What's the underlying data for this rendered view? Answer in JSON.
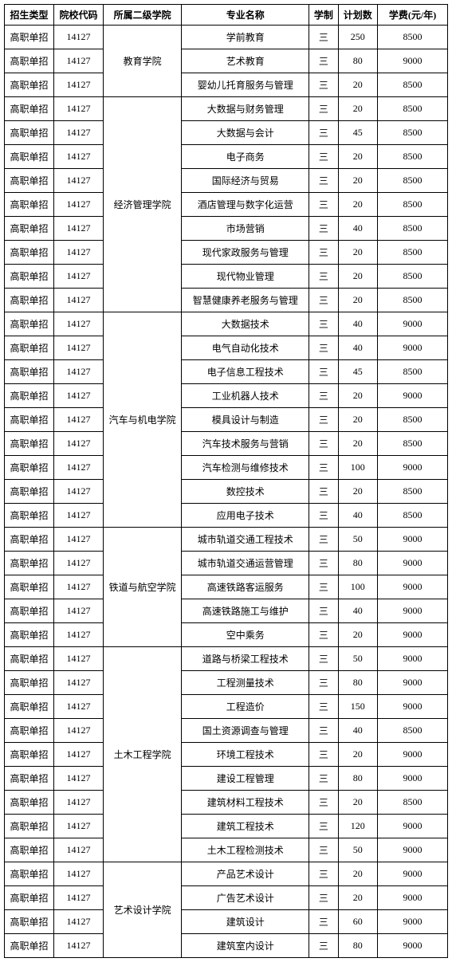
{
  "headers": [
    "招生类型",
    "院校代码",
    "所属二级学院",
    "专业名称",
    "学制",
    "计划数",
    "学费(元/年)"
  ],
  "admission_type": "高职单招",
  "school_code": "14127",
  "study_years": "三",
  "departments": [
    {
      "name": "教育学院",
      "majors": [
        {
          "name": "学前教育",
          "plan": "250",
          "fee": "8500"
        },
        {
          "name": "艺术教育",
          "plan": "80",
          "fee": "9000"
        },
        {
          "name": "婴幼儿托育服务与管理",
          "plan": "20",
          "fee": "8500"
        }
      ]
    },
    {
      "name": "经济管理学院",
      "majors": [
        {
          "name": "大数据与财务管理",
          "plan": "20",
          "fee": "8500"
        },
        {
          "name": "大数据与会计",
          "plan": "45",
          "fee": "8500"
        },
        {
          "name": "电子商务",
          "plan": "20",
          "fee": "8500"
        },
        {
          "name": "国际经济与贸易",
          "plan": "20",
          "fee": "8500"
        },
        {
          "name": "酒店管理与数字化运营",
          "plan": "20",
          "fee": "8500"
        },
        {
          "name": "市场营销",
          "plan": "40",
          "fee": "8500"
        },
        {
          "name": "现代家政服务与管理",
          "plan": "20",
          "fee": "8500"
        },
        {
          "name": "现代物业管理",
          "plan": "20",
          "fee": "8500"
        },
        {
          "name": "智慧健康养老服务与管理",
          "plan": "20",
          "fee": "8500"
        }
      ]
    },
    {
      "name": "汽车与机电学院",
      "majors": [
        {
          "name": "大数据技术",
          "plan": "40",
          "fee": "9000"
        },
        {
          "name": "电气自动化技术",
          "plan": "40",
          "fee": "9000"
        },
        {
          "name": "电子信息工程技术",
          "plan": "45",
          "fee": "8500"
        },
        {
          "name": "工业机器人技术",
          "plan": "20",
          "fee": "9000"
        },
        {
          "name": "模具设计与制造",
          "plan": "20",
          "fee": "8500"
        },
        {
          "name": "汽车技术服务与营销",
          "plan": "20",
          "fee": "8500"
        },
        {
          "name": "汽车检测与维修技术",
          "plan": "100",
          "fee": "9000"
        },
        {
          "name": "数控技术",
          "plan": "20",
          "fee": "8500"
        },
        {
          "name": "应用电子技术",
          "plan": "40",
          "fee": "8500"
        }
      ]
    },
    {
      "name": "铁道与航空学院",
      "majors": [
        {
          "name": "城市轨道交通工程技术",
          "plan": "50",
          "fee": "9000"
        },
        {
          "name": "城市轨道交通运营管理",
          "plan": "80",
          "fee": "9000"
        },
        {
          "name": "高速铁路客运服务",
          "plan": "100",
          "fee": "9000"
        },
        {
          "name": "高速铁路施工与维护",
          "plan": "40",
          "fee": "9000"
        },
        {
          "name": "空中乘务",
          "plan": "20",
          "fee": "9000"
        }
      ]
    },
    {
      "name": "土木工程学院",
      "majors": [
        {
          "name": "道路与桥梁工程技术",
          "plan": "50",
          "fee": "9000"
        },
        {
          "name": "工程测量技术",
          "plan": "80",
          "fee": "9000"
        },
        {
          "name": "工程造价",
          "plan": "150",
          "fee": "9000"
        },
        {
          "name": "国土资源调查与管理",
          "plan": "40",
          "fee": "8500"
        },
        {
          "name": "环境工程技术",
          "plan": "20",
          "fee": "9000"
        },
        {
          "name": "建设工程管理",
          "plan": "80",
          "fee": "9000"
        },
        {
          "name": "建筑材料工程技术",
          "plan": "20",
          "fee": "8500"
        },
        {
          "name": "建筑工程技术",
          "plan": "120",
          "fee": "9000"
        },
        {
          "name": "土木工程检测技术",
          "plan": "50",
          "fee": "9000"
        }
      ]
    },
    {
      "name": "艺术设计学院",
      "majors": [
        {
          "name": "产品艺术设计",
          "plan": "20",
          "fee": "9000"
        },
        {
          "name": "广告艺术设计",
          "plan": "20",
          "fee": "9000"
        },
        {
          "name": "建筑设计",
          "plan": "60",
          "fee": "9000"
        },
        {
          "name": "建筑室内设计",
          "plan": "80",
          "fee": "9000"
        }
      ]
    }
  ]
}
